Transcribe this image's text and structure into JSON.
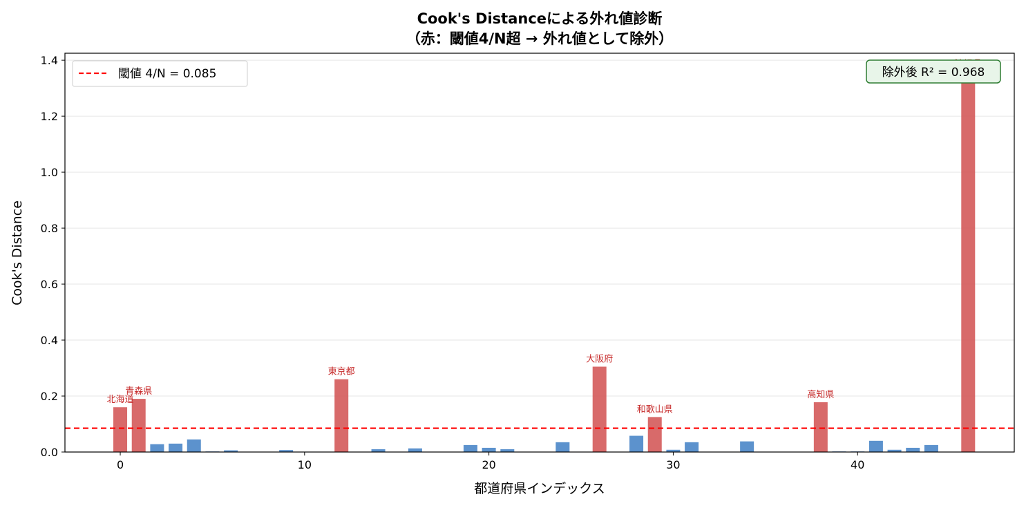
{
  "chart_data": {
    "type": "bar",
    "title_line1": "Cook's Distanceによる外れ値診断",
    "title_line2": "（赤：閾値4/N超 → 外れ値として除外）",
    "xlabel": "都道府県インデックス",
    "ylabel": "Cook's Distance",
    "xlim": [
      -3,
      48.5
    ],
    "ylim": [
      0,
      1.425
    ],
    "xticks": [
      0,
      10,
      20,
      30,
      40
    ],
    "yticks": [
      0.0,
      0.2,
      0.4,
      0.6,
      0.8,
      1.0,
      1.2,
      1.4
    ],
    "ytick_labels": [
      "0.0",
      "0.2",
      "0.4",
      "0.6",
      "0.8",
      "1.0",
      "1.2",
      "1.4"
    ],
    "grid": "y",
    "threshold": {
      "value": 0.085,
      "label": "閾値 4/N = 0.085",
      "color": "#ff0000",
      "style": "dashed"
    },
    "legend_position": "top-left",
    "annotation_box": {
      "text": "除外後 R² = 0.968",
      "position": "top-right",
      "border_color": "#2e7d32",
      "fill_color": "#e8f5e9"
    },
    "colors": {
      "normal": "#4a86c8",
      "outlier": "#d45a5a",
      "outlier_label": "#c62828"
    },
    "bars": [
      {
        "x": 0,
        "value": 0.16,
        "outlier": true,
        "label": "北海道"
      },
      {
        "x": 1,
        "value": 0.19,
        "outlier": true,
        "label": "青森県"
      },
      {
        "x": 2,
        "value": 0.028
      },
      {
        "x": 3,
        "value": 0.03
      },
      {
        "x": 4,
        "value": 0.045
      },
      {
        "x": 5,
        "value": 0.002
      },
      {
        "x": 6,
        "value": 0.006
      },
      {
        "x": 7,
        "value": 0.001
      },
      {
        "x": 8,
        "value": 0.001
      },
      {
        "x": 9,
        "value": 0.007
      },
      {
        "x": 10,
        "value": 0.001
      },
      {
        "x": 11,
        "value": 0.001
      },
      {
        "x": 12,
        "value": 0.26,
        "outlier": true,
        "label": "東京都"
      },
      {
        "x": 13,
        "value": 0.001
      },
      {
        "x": 14,
        "value": 0.01
      },
      {
        "x": 15,
        "value": 0.001
      },
      {
        "x": 16,
        "value": 0.013
      },
      {
        "x": 17,
        "value": 0.001
      },
      {
        "x": 18,
        "value": 0.001
      },
      {
        "x": 19,
        "value": 0.025
      },
      {
        "x": 20,
        "value": 0.015
      },
      {
        "x": 21,
        "value": 0.01
      },
      {
        "x": 22,
        "value": 0.001
      },
      {
        "x": 23,
        "value": 0.001
      },
      {
        "x": 24,
        "value": 0.035
      },
      {
        "x": 25,
        "value": 0.001
      },
      {
        "x": 26,
        "value": 0.305,
        "outlier": true,
        "label": "大阪府"
      },
      {
        "x": 27,
        "value": 0.001
      },
      {
        "x": 28,
        "value": 0.058
      },
      {
        "x": 29,
        "value": 0.125,
        "outlier": true,
        "label": "和歌山県"
      },
      {
        "x": 30,
        "value": 0.008
      },
      {
        "x": 31,
        "value": 0.035
      },
      {
        "x": 32,
        "value": 0.001
      },
      {
        "x": 33,
        "value": 0.001
      },
      {
        "x": 34,
        "value": 0.038
      },
      {
        "x": 35,
        "value": 0.001
      },
      {
        "x": 36,
        "value": 0.001
      },
      {
        "x": 37,
        "value": 0.001
      },
      {
        "x": 38,
        "value": 0.178,
        "outlier": true,
        "label": "高知県"
      },
      {
        "x": 39,
        "value": 0.002
      },
      {
        "x": 40,
        "value": 0.002
      },
      {
        "x": 41,
        "value": 0.04
      },
      {
        "x": 42,
        "value": 0.008
      },
      {
        "x": 43,
        "value": 0.015
      },
      {
        "x": 44,
        "value": 0.025
      },
      {
        "x": 45,
        "value": 0.001
      },
      {
        "x": 46,
        "value": 1.36,
        "outlier": true,
        "label": "沖縄県"
      }
    ]
  }
}
